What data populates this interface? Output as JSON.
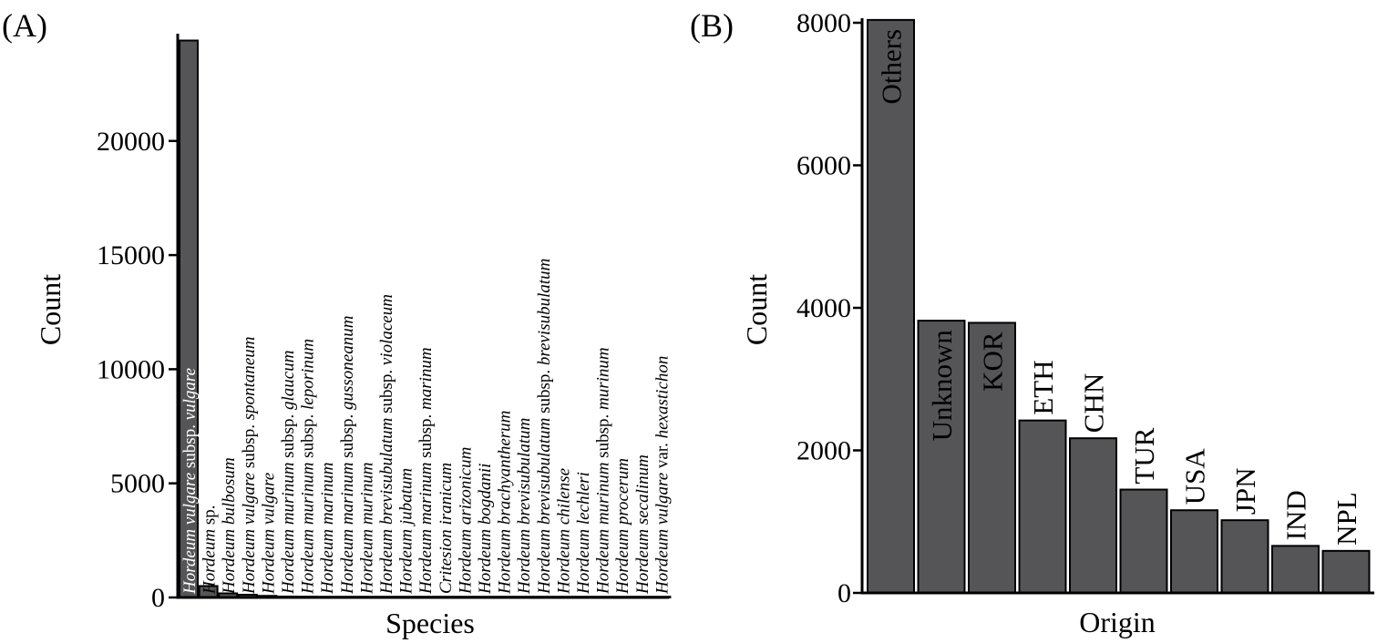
{
  "chart_data": [
    {
      "type": "bar",
      "panel_label": "(A)",
      "xlabel": "Species",
      "ylabel": "Count",
      "ylim": [
        0,
        24500
      ],
      "yticks": [
        0,
        5000,
        10000,
        15000,
        20000
      ],
      "grid": false,
      "categories": [
        [
          {
            "t": "Hordeum vulgare",
            "i": true
          },
          {
            "t": " subsp. ",
            "i": false
          },
          {
            "t": "vulgare",
            "i": true
          }
        ],
        [
          {
            "t": "Hordeum",
            "i": true
          },
          {
            "t": " sp.",
            "i": false
          }
        ],
        [
          {
            "t": "Hordeum bulbosum",
            "i": true
          }
        ],
        [
          {
            "t": "Hordeum vulgare",
            "i": true
          },
          {
            "t": " subsp. ",
            "i": false
          },
          {
            "t": "spontaneum",
            "i": true
          }
        ],
        [
          {
            "t": "Hordeum vulgare",
            "i": true
          }
        ],
        [
          {
            "t": "Hordeum murinum",
            "i": true
          },
          {
            "t": " subsp. ",
            "i": false
          },
          {
            "t": "glaucum",
            "i": true
          }
        ],
        [
          {
            "t": "Hordeum murinum",
            "i": true
          },
          {
            "t": " subsp. ",
            "i": false
          },
          {
            "t": "leporinum",
            "i": true
          }
        ],
        [
          {
            "t": "Hordeum marinum",
            "i": true
          }
        ],
        [
          {
            "t": "Hordeum marinum",
            "i": true
          },
          {
            "t": " subsp. ",
            "i": false
          },
          {
            "t": "gussoneanum",
            "i": true
          }
        ],
        [
          {
            "t": "Hordeum murinum",
            "i": true
          }
        ],
        [
          {
            "t": "Hordeum brevisubulatum",
            "i": true
          },
          {
            "t": " subsp. ",
            "i": false
          },
          {
            "t": "violaceum",
            "i": true
          }
        ],
        [
          {
            "t": "Hordeum jubatum",
            "i": true
          }
        ],
        [
          {
            "t": "Hordeum marinum",
            "i": true
          },
          {
            "t": " subsp. ",
            "i": false
          },
          {
            "t": "marinum",
            "i": true
          }
        ],
        [
          {
            "t": "Critesion iranicum",
            "i": true
          }
        ],
        [
          {
            "t": "Hordeum arizonicum",
            "i": true
          }
        ],
        [
          {
            "t": "Hordeum bogdanii",
            "i": true
          }
        ],
        [
          {
            "t": "Hordeum brachyantherum",
            "i": true
          }
        ],
        [
          {
            "t": "Hordeum brevisubulatum",
            "i": true
          }
        ],
        [
          {
            "t": "Hordeum brevisubulatum",
            "i": true
          },
          {
            "t": " subsp. ",
            "i": false
          },
          {
            "t": "brevisubulatum",
            "i": true
          }
        ],
        [
          {
            "t": "Hordeum chilense",
            "i": true
          }
        ],
        [
          {
            "t": "Hordeum lechleri",
            "i": true
          }
        ],
        [
          {
            "t": "Hordeum murinum",
            "i": true
          },
          {
            "t": " subsp. ",
            "i": false
          },
          {
            "t": "murinum",
            "i": true
          }
        ],
        [
          {
            "t": "Hordeum procerum",
            "i": true
          }
        ],
        [
          {
            "t": "Hordeum secalinum",
            "i": true
          }
        ],
        [
          {
            "t": "Hordeum vulgare",
            "i": true
          },
          {
            "t": " var. ",
            "i": false
          },
          {
            "t": "hexastichon",
            "i": true
          }
        ]
      ],
      "values": [
        24400,
        500,
        180,
        120,
        70,
        40,
        35,
        30,
        25,
        20,
        15,
        12,
        10,
        8,
        7,
        6,
        5,
        5,
        4,
        4,
        3,
        3,
        2,
        2,
        1
      ],
      "label_color": [
        "#ffffff",
        "#000000"
      ]
    },
    {
      "type": "bar",
      "panel_label": "(B)",
      "xlabel": "Origin",
      "ylabel": "Count",
      "ylim": [
        0,
        8000
      ],
      "yticks": [
        0,
        2000,
        4000,
        6000,
        8000
      ],
      "grid": false,
      "categories": [
        "Others",
        "Unknown",
        "KOR",
        "ETH",
        "CHN",
        "TUR",
        "USA",
        "JPN",
        "IND",
        "NPL"
      ],
      "values": [
        8040,
        3820,
        3790,
        2420,
        2170,
        1450,
        1160,
        1020,
        660,
        590
      ],
      "label_inside": [
        true,
        true,
        true,
        false,
        false,
        false,
        false,
        false,
        false,
        false
      ],
      "label_color": [
        "#ffffff",
        "#000000"
      ]
    }
  ],
  "colors": {
    "bar_fill": "#555558",
    "bar_stroke": "#000000",
    "axis": "#000000"
  }
}
